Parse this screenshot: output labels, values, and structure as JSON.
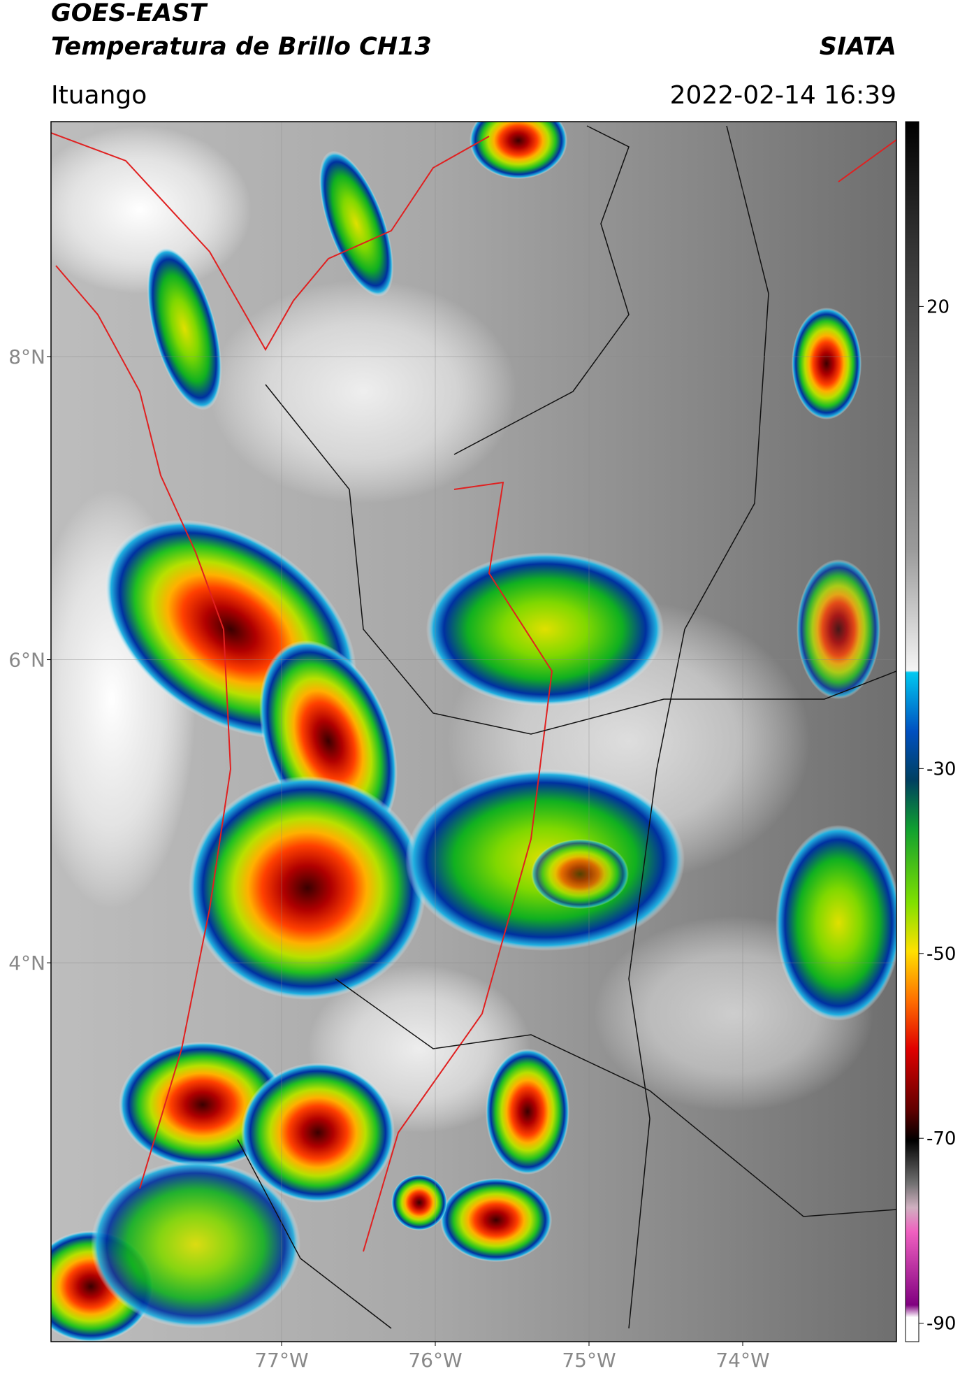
{
  "header": {
    "title": "GOES-EAST",
    "subtitle": "Temperatura de Brillo CH13",
    "brand": "SIATA",
    "location": "Ituango",
    "datetime": "2022-02-14 16:39"
  },
  "map": {
    "lon_range": [
      -78.5,
      -73.0
    ],
    "lat_range": [
      1.5,
      9.55
    ],
    "lat_ticks": [
      {
        "value": 8,
        "label": "8°N"
      },
      {
        "value": 6,
        "label": "6°N"
      },
      {
        "value": 4,
        "label": "4°N"
      }
    ],
    "lon_ticks": [
      {
        "value": -77,
        "label": "77°W"
      },
      {
        "value": -76,
        "label": "76°W"
      },
      {
        "value": -75,
        "label": "75°W"
      },
      {
        "value": -74,
        "label": "74°W"
      }
    ]
  },
  "colorbar": {
    "range": [
      -92,
      40
    ],
    "ticks": [
      20,
      -30,
      -50,
      -70,
      -90
    ]
  }
}
